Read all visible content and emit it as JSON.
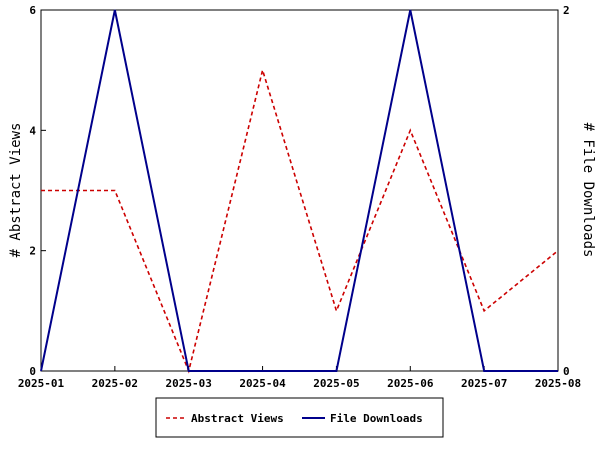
{
  "chart_data": {
    "type": "line",
    "x": [
      "2025-01",
      "2025-02",
      "2025-03",
      "2025-04",
      "2025-05",
      "2025-06",
      "2025-07",
      "2025-08"
    ],
    "series": [
      {
        "name": "Abstract Views",
        "axis": "left",
        "color": "#cc0000",
        "style": "dashed",
        "values": [
          3,
          3,
          0,
          5,
          1,
          4,
          1,
          2
        ]
      },
      {
        "name": "File Downloads",
        "axis": "right",
        "color": "#00008b",
        "style": "solid",
        "values": [
          0,
          2,
          0,
          0,
          0,
          2,
          0,
          0
        ]
      }
    ],
    "ylabel_left": "# Abstract Views",
    "ylabel_right": "# File Downloads",
    "ylim_left": [
      0,
      6
    ],
    "yticks_left": [
      0,
      2,
      4,
      6
    ],
    "ylim_right": [
      0,
      2
    ],
    "yticks_right": [
      0,
      2
    ],
    "grid": false,
    "legend_position": "bottom"
  }
}
